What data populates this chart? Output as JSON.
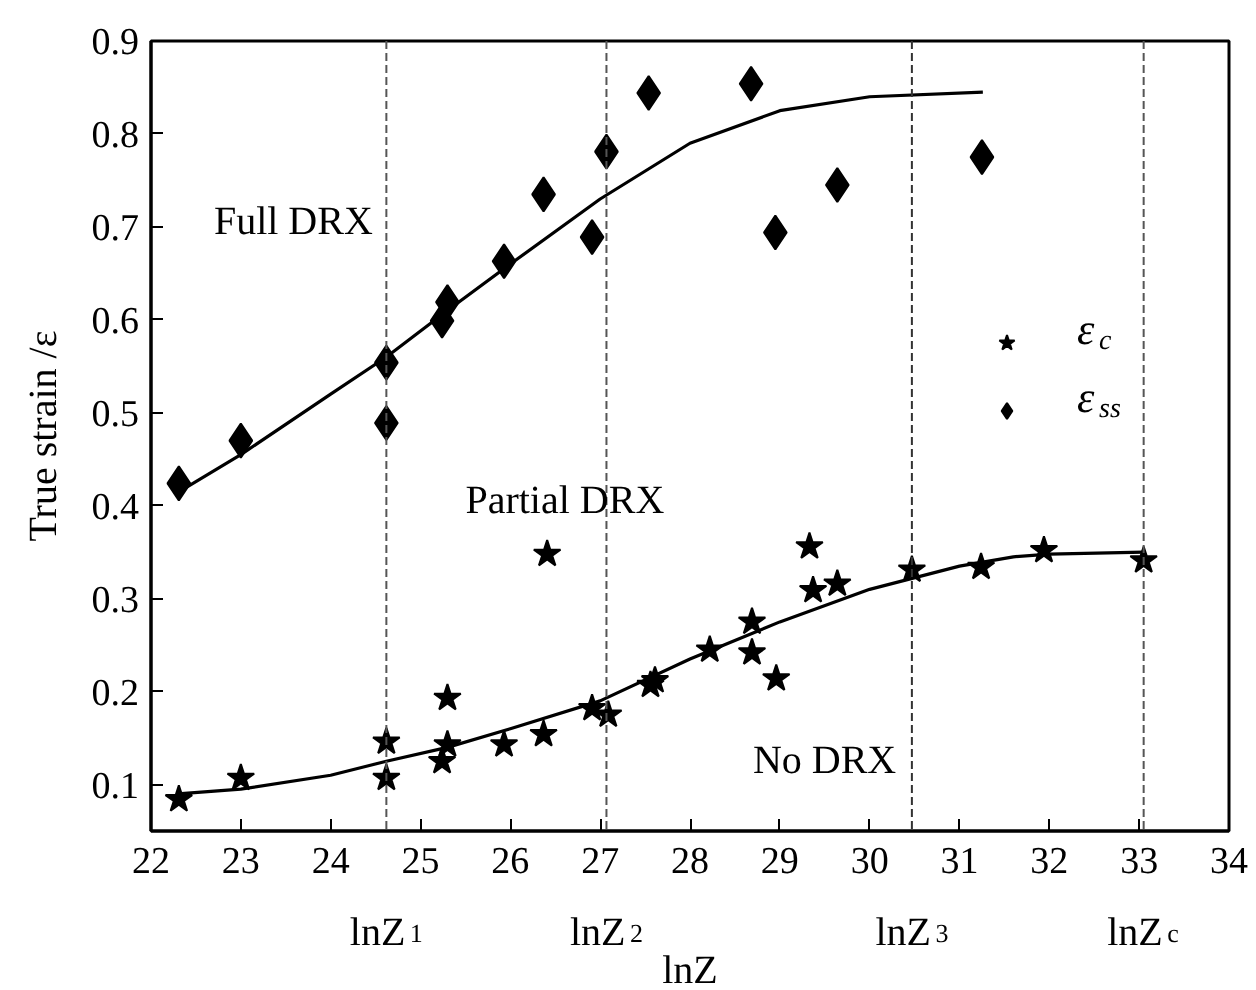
{
  "chart_data": {
    "type": "scatter",
    "xlabel": "lnZ",
    "ylabel": "True strain /ε",
    "xlim": [
      22,
      34
    ],
    "ylim": [
      0.05,
      0.9
    ],
    "xticks": [
      22,
      23,
      24,
      25,
      26,
      27,
      28,
      29,
      30,
      31,
      32,
      33,
      34
    ],
    "yticks": [
      0.1,
      0.2,
      0.3,
      0.4,
      0.5,
      0.6,
      0.7,
      0.8,
      0.9
    ],
    "grid": false,
    "legend": "right",
    "series": [
      {
        "name": "ε$_{c}$",
        "color": "#000000",
        "marker": "star",
        "x": [
          22.31,
          23.0,
          24.62,
          24.62,
          25.3,
          25.3,
          25.24,
          25.93,
          26.37,
          26.41,
          26.91,
          27.09,
          27.56,
          27.61,
          28.22,
          28.69,
          28.69,
          28.96,
          29.33,
          29.37,
          29.64,
          30.47,
          31.24,
          31.94,
          33.05
        ],
        "values": [
          0.084,
          0.107,
          0.146,
          0.107,
          0.193,
          0.143,
          0.125,
          0.143,
          0.154,
          0.348,
          0.182,
          0.175,
          0.207,
          0.212,
          0.245,
          0.275,
          0.242,
          0.214,
          0.356,
          0.309,
          0.316,
          0.331,
          0.334,
          0.352,
          0.341
        ]
      },
      {
        "name": "ε$_{ss}$",
        "color": "#000000",
        "marker": "diamond",
        "x": [
          22.31,
          23.0,
          24.62,
          24.62,
          25.24,
          25.3,
          25.93,
          26.37,
          26.91,
          27.07,
          27.54,
          28.68,
          28.95,
          29.64,
          31.25
        ],
        "values": [
          0.424,
          0.47,
          0.554,
          0.489,
          0.599,
          0.619,
          0.663,
          0.735,
          0.689,
          0.781,
          0.844,
          0.854,
          0.694,
          0.745,
          0.775
        ]
      },
      {
        "type": "line",
        "color": "#000000",
        "marker": "none",
        "x": [
          22.31,
          23.0,
          24.0,
          24.62,
          25.3,
          26.0,
          27.0,
          28.0,
          29.0,
          30.0,
          31.26
        ],
        "values": [
          0.415,
          0.455,
          0.52,
          0.56,
          0.61,
          0.66,
          0.73,
          0.79,
          0.825,
          0.84,
          0.845
        ]
      },
      {
        "type": "line",
        "color": "#000000",
        "marker": "none",
        "x": [
          22.3,
          23.0,
          24.0,
          24.62,
          25.3,
          26.0,
          27.0,
          28.0,
          29.0,
          30.0,
          31.0,
          31.6,
          32.0,
          33.05
        ],
        "values": [
          0.09,
          0.095,
          0.11,
          0.125,
          0.14,
          0.16,
          0.19,
          0.235,
          0.275,
          0.31,
          0.335,
          0.345,
          0.348,
          0.35
        ]
      }
    ],
    "ref_lines": [
      {
        "axis": "x",
        "value": 24.62,
        "label": "lnZ$_{1}$",
        "color": "#555555",
        "line_style": "dashed"
      },
      {
        "axis": "x",
        "value": 27.07,
        "label": "lnZ$_{2}$",
        "color": "#555555",
        "line_style": "dashed"
      },
      {
        "axis": "x",
        "value": 30.47,
        "label": "lnZ$_{3}$",
        "color": "#333333",
        "line_style": "dashed"
      },
      {
        "axis": "x",
        "value": 33.05,
        "label": "lnZ$_{c}$",
        "color": "#555555",
        "line_style": "dashed"
      }
    ],
    "annotations": [
      "Full DRX",
      "Partial DRX",
      "No DRX"
    ]
  }
}
